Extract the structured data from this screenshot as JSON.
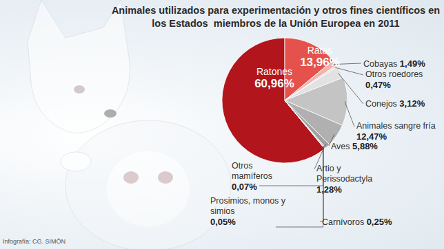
{
  "chart_data": {
    "type": "pie",
    "title": "Animales utilizados para experimentación y otros fines científicos en los Estados  miembros de la Unión Europea en 2011",
    "source": "Infografía: CG. SIMÓN",
    "categories": [
      "Ratones",
      "Ratas",
      "Cobayas",
      "Otros roedores",
      "Conejos",
      "Animales sangre fría",
      "Aves",
      "Artio y Perissodactyla",
      "Carnívoros",
      "Prosimios, monos y simios",
      "Otros mamíferos"
    ],
    "values": [
      60.96,
      13.96,
      1.49,
      0.47,
      3.12,
      12.47,
      5.88,
      1.28,
      0.25,
      0.05,
      0.07
    ],
    "value_labels": [
      "60,96%",
      "13,96%",
      "1,49%",
      "0,47%",
      "3,12%",
      "12,47%",
      "5,88%",
      "1,28%",
      "0,25%",
      "0,05%",
      "0,07%"
    ],
    "colors": [
      "#b3151d",
      "#e4524b",
      "#f0b3b0",
      "#f7dcda",
      "#e2e2e2",
      "#c4c4c4",
      "#b0b0b0",
      "#a0a0a0",
      "#909090",
      "#808080",
      "#707070"
    ],
    "data_labels": true
  }
}
